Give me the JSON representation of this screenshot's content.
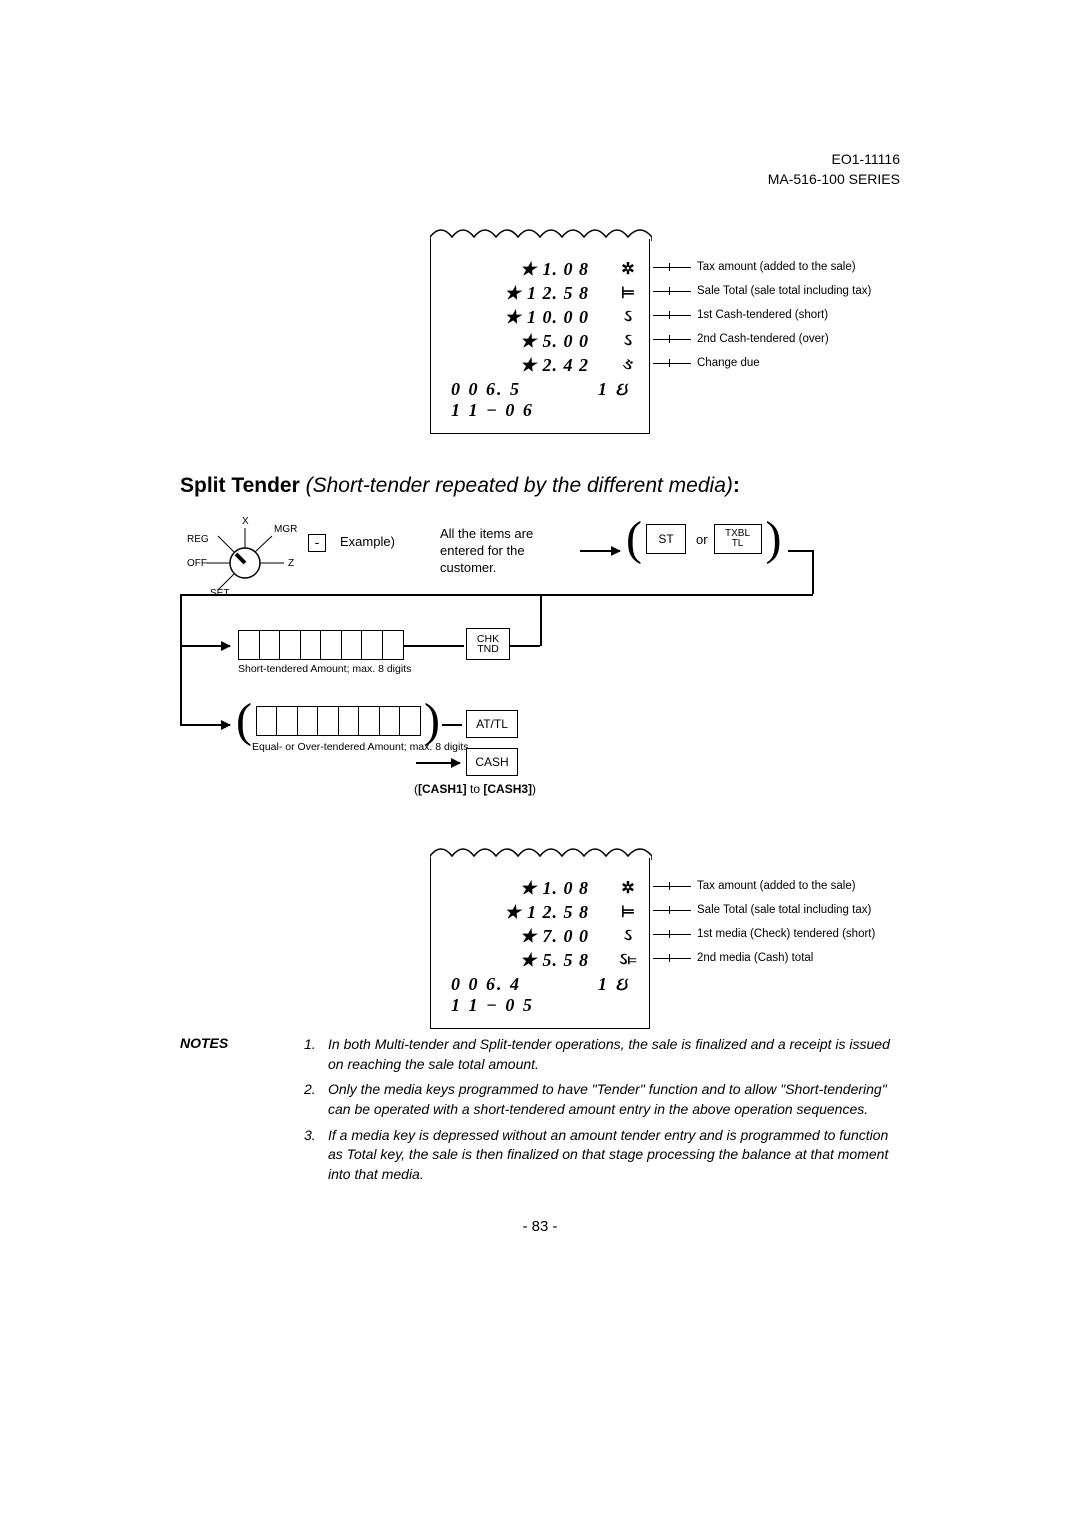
{
  "header": {
    "docnum": "EO1-11116",
    "series": "MA-516-100 SERIES"
  },
  "receipt1": {
    "lines": [
      {
        "val": "★ 1. 0 8",
        "sym": "✲",
        "annot": "Tax amount (added to the sale)"
      },
      {
        "val": "★ 1 2. 5 8",
        "sym": "⊨",
        "annot": "Sale Total (sale total including tax)"
      },
      {
        "val": "★ 1 0. 0 0",
        "sym": "ઽ",
        "annot": "1st Cash-tendered (short)"
      },
      {
        "val": "★ 5. 0 0",
        "sym": "ઽ",
        "annot": "2nd Cash-tendered (over)"
      },
      {
        "val": "★ 2. 4 2",
        "sym": "ઙ",
        "annot": "Change due"
      }
    ],
    "footer1_left": "0 0 6. 5",
    "footer1_right": "1 ઇ",
    "footer2": "1 1 − 0 6"
  },
  "title": {
    "bold": "Split Tender",
    "italic": " (Short-tender repeated by the different media)",
    "colon": ":"
  },
  "flow": {
    "knob": {
      "x": "X",
      "mgr": "MGR",
      "reg": "REG",
      "off": "OFF",
      "set": "SET",
      "z": "Z",
      "minus": "-"
    },
    "example": "Example)",
    "all_items": "All the items are entered for the customer.",
    "st": "ST",
    "or": "or",
    "txbl": "TXBL",
    "tl": "TL",
    "chk": "CHK",
    "tnd": "TND",
    "note1": "Short-tendered Amount; max. 8 digits",
    "note2": "Equal- or Over-tendered Amount; max. 8 digits",
    "attl": "AT/TL",
    "cash": "CASH",
    "cash_range_open": "(",
    "cash1": "[CASH1]",
    "to": " to ",
    "cash3": "[CASH3]",
    "cash_range_close": ")"
  },
  "receipt2": {
    "lines": [
      {
        "val": "★ 1. 0 8",
        "sym": "✲",
        "annot": "Tax amount (added to the sale)"
      },
      {
        "val": "★ 1 2. 5 8",
        "sym": "⊨",
        "annot": "Sale Total (sale total including tax)"
      },
      {
        "val": "★ 7. 0 0",
        "sym": "ઽ",
        "annot": "1st media (Check) tendered (short)"
      },
      {
        "val": "★ 5. 5 8",
        "sym": "ઽ⊨",
        "annot": "2nd media (Cash) total"
      }
    ],
    "footer1_left": "0 0 6. 4",
    "footer1_right": "1 ઇ",
    "footer2": "1 1 − 0 5"
  },
  "notes": {
    "label": "NOTES",
    "items": [
      "In both Multi-tender and Split-tender operations, the sale is finalized and a receipt is issued on reaching the sale total amount.",
      "Only the media keys programmed to have \"Tender\" function and to allow \"Short-tendering\" can be operated with a short-tendered amount entry in the above operation sequences.",
      "If a media key is depressed without an amount tender entry and is programmed to function as Total key, the sale is then finalized on that stage processing the balance at that moment into that media."
    ]
  },
  "pagenum": "- 83 -"
}
